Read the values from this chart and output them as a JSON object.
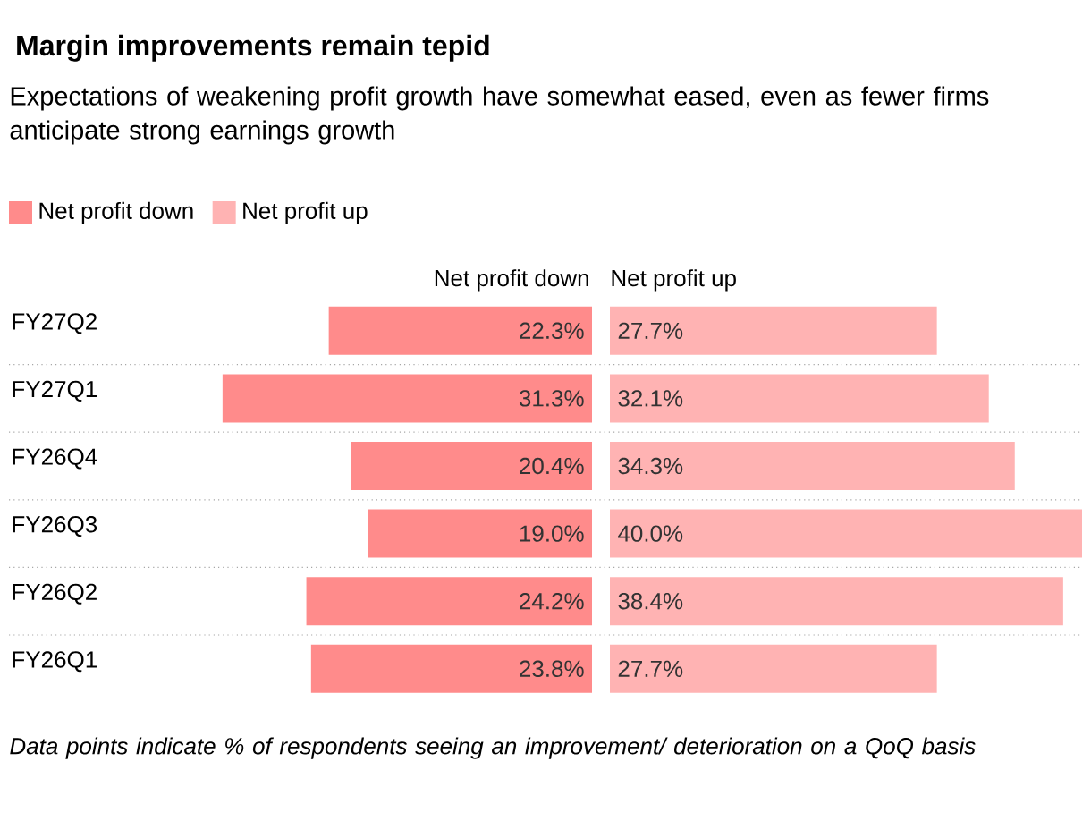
{
  "chart_data": [
    {
      "type": "bar",
      "orientation": "horizontal",
      "title": "Margin improvements remain tepid",
      "subtitle": "Expectations of weakening profit growth have somewhat eased, even as fewer firms anticipate strong earnings growth",
      "categories": [
        "FY27Q2",
        "FY27Q1",
        "FY26Q4",
        "FY26Q3",
        "FY26Q2",
        "FY26Q1"
      ],
      "series": [
        {
          "name": "Net profit down",
          "color": "#ff8b8b",
          "values": [
            22.3,
            31.3,
            20.4,
            19.0,
            24.2,
            23.8
          ],
          "value_labels": [
            "22.3%",
            "31.3%",
            "20.4%",
            "19.0%",
            "24.2%",
            "23.8%"
          ]
        }
      ],
      "annotations": [
        "Net profit down",
        "Data points indicate % of respondents seeing an improvement/ deterioration on a QoQ basis"
      ],
      "legend": "top left",
      "grid": "y"
    },
    {
      "type": "bar",
      "orientation": "horizontal",
      "categories": [
        null,
        null,
        null,
        null,
        null,
        null
      ],
      "series": [
        {
          "name": "Net profit up",
          "color": "#ffb3b3",
          "values": [
            27.7,
            32.1,
            34.3,
            40.0,
            38.4,
            27.7
          ],
          "value_labels": [
            "27.7%",
            "32.1%",
            "34.3%",
            "40.0%",
            "38.4%",
            "27.7%"
          ]
        }
      ],
      "annotations": [
        "Net profit up"
      ],
      "legend": "top left"
    }
  ]
}
